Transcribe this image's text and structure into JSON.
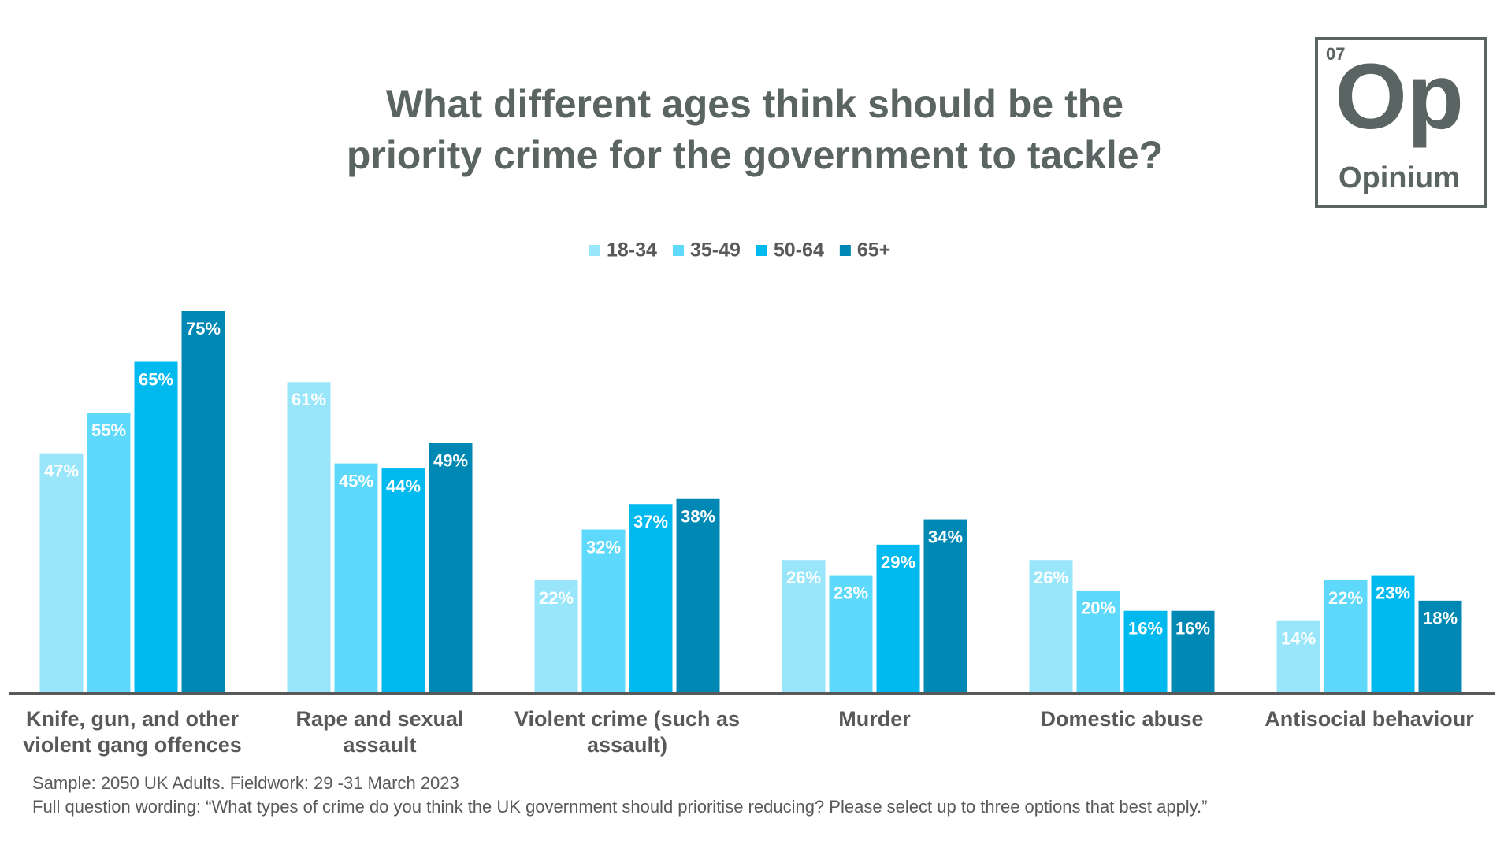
{
  "logo": {
    "number": "07",
    "symbol": "Op",
    "name": "Opinium"
  },
  "chart_data": {
    "type": "bar",
    "title": [
      "What different ages think should be the",
      "priority crime for the government to tackle?"
    ],
    "categories": [
      "Knife, gun, and other violent gang offences",
      "Rape and sexual assault",
      "Violent crime (such as assault)",
      "Murder",
      "Domestic abuse",
      "Antisocial behaviour"
    ],
    "series": [
      {
        "name": "18-34",
        "color": "#99e6fb",
        "values": [
          47,
          61,
          22,
          26,
          26,
          14
        ],
        "value_labels": [
          "47%",
          "61%",
          "22%",
          "26%",
          "26%",
          "14%"
        ]
      },
      {
        "name": "35-49",
        "color": "#5fd9fb",
        "values": [
          55,
          45,
          32,
          23,
          20,
          22
        ],
        "value_labels": [
          "55%",
          "45%",
          "32%",
          "23%",
          "20%",
          "22%"
        ]
      },
      {
        "name": "50-64",
        "color": "#00b9ee",
        "values": [
          65,
          44,
          37,
          29,
          16,
          23
        ],
        "value_labels": [
          "65%",
          "44%",
          "37%",
          "29%",
          "16%",
          "23%"
        ]
      },
      {
        "name": "65+",
        "color": "#0088b5",
        "values": [
          75,
          49,
          38,
          34,
          16,
          18
        ],
        "value_labels": [
          "75%",
          "49%",
          "38%",
          "34%",
          "16%",
          "18%"
        ]
      }
    ],
    "legend": "top",
    "notes": [
      "Sample: 2050 UK Adults. Fieldwork: 29 -31 March 2023",
      "Full question wording: “What types of crime do you think the UK government should prioritise reducing? Please select up to three options that best apply.”"
    ]
  }
}
